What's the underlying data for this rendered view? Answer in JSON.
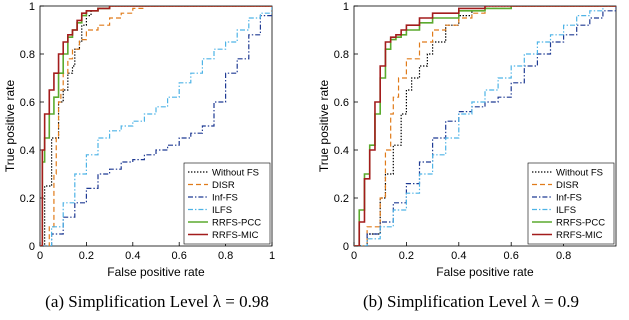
{
  "figure": {
    "captions": [
      "(a)  Simplification Level λ = 0.98",
      "(b)  Simplification Level λ = 0.9"
    ]
  },
  "chart_data": [
    {
      "type": "line",
      "xlabel": "False positive rate",
      "ylabel": "True positive rate",
      "xlim": [
        0,
        1
      ],
      "ylim": [
        0,
        1
      ],
      "xticks": [
        "0",
        "0.2",
        "0.4",
        "0.6",
        "0.8",
        "1"
      ],
      "yticks": [
        "0",
        "0.2",
        "0.4",
        "0.6",
        "0.8",
        "1"
      ],
      "grid": false,
      "legend_position": "bottom-right",
      "series": [
        {
          "name": "Without FS",
          "color": "#000000",
          "dash": "dotted",
          "x": [
            0,
            0.02,
            0.05,
            0.08,
            0.1,
            0.12,
            0.14,
            0.15,
            0.17,
            0.18,
            0.2,
            0.22,
            0.25,
            0.3,
            0.35,
            0.4,
            0.5,
            0.6,
            0.7,
            0.8,
            0.9,
            1.0
          ],
          "y": [
            0,
            0.25,
            0.45,
            0.6,
            0.65,
            0.72,
            0.75,
            0.82,
            0.85,
            0.92,
            0.96,
            0.98,
            0.99,
            1,
            1,
            1,
            1,
            1,
            1,
            1,
            1,
            1
          ]
        },
        {
          "name": "DISR",
          "color": "#E07B1A",
          "dash": "dashed",
          "x": [
            0,
            0.04,
            0.06,
            0.07,
            0.08,
            0.09,
            0.1,
            0.12,
            0.14,
            0.17,
            0.2,
            0.25,
            0.3,
            0.35,
            0.4,
            0.45,
            0.5,
            0.6,
            0.7,
            1.0
          ],
          "y": [
            0,
            0.08,
            0.3,
            0.45,
            0.6,
            0.65,
            0.72,
            0.78,
            0.82,
            0.86,
            0.9,
            0.92,
            0.95,
            0.97,
            0.99,
            1,
            1,
            1,
            1,
            1
          ]
        },
        {
          "name": "Inf-FS",
          "color": "#1F3A93",
          "dash": "dashdot",
          "x": [
            0,
            0.05,
            0.1,
            0.15,
            0.2,
            0.25,
            0.3,
            0.35,
            0.4,
            0.45,
            0.5,
            0.55,
            0.6,
            0.65,
            0.7,
            0.75,
            0.8,
            0.85,
            0.9,
            0.95,
            1.0
          ],
          "y": [
            0,
            0.05,
            0.12,
            0.18,
            0.24,
            0.3,
            0.32,
            0.35,
            0.36,
            0.38,
            0.4,
            0.42,
            0.45,
            0.47,
            0.5,
            0.6,
            0.72,
            0.78,
            0.88,
            0.96,
            1.0
          ]
        },
        {
          "name": "ILFS",
          "color": "#4EB3E6",
          "dash": "dashdot",
          "x": [
            0,
            0.05,
            0.1,
            0.15,
            0.2,
            0.25,
            0.3,
            0.35,
            0.4,
            0.45,
            0.5,
            0.55,
            0.6,
            0.65,
            0.7,
            0.75,
            0.8,
            0.85,
            0.9,
            0.95,
            1.0
          ],
          "y": [
            0,
            0.08,
            0.18,
            0.3,
            0.38,
            0.45,
            0.48,
            0.5,
            0.52,
            0.55,
            0.58,
            0.62,
            0.68,
            0.72,
            0.78,
            0.82,
            0.85,
            0.9,
            0.95,
            0.97,
            1.0
          ]
        },
        {
          "name": "RRFS-PCC",
          "color": "#5BAA2E",
          "dash": "solid",
          "x": [
            0,
            0.01,
            0.02,
            0.04,
            0.06,
            0.08,
            0.1,
            0.12,
            0.14,
            0.16,
            0.18,
            0.2,
            0.25,
            0.3,
            0.4,
            0.5,
            0.7,
            1.0
          ],
          "y": [
            0,
            0.35,
            0.45,
            0.55,
            0.62,
            0.72,
            0.8,
            0.87,
            0.9,
            0.93,
            0.96,
            0.98,
            0.99,
            1,
            1,
            1,
            1,
            1
          ]
        },
        {
          "name": "RRFS-MIC",
          "color": "#A31C1C",
          "dash": "solid",
          "x": [
            0,
            0.01,
            0.02,
            0.04,
            0.06,
            0.08,
            0.1,
            0.12,
            0.14,
            0.16,
            0.18,
            0.2,
            0.25,
            0.3,
            0.4,
            0.5,
            0.7,
            1.0
          ],
          "y": [
            0,
            0.4,
            0.55,
            0.65,
            0.72,
            0.8,
            0.85,
            0.88,
            0.9,
            0.94,
            0.97,
            0.98,
            0.99,
            1,
            1,
            1,
            1,
            1
          ]
        }
      ]
    },
    {
      "type": "line",
      "xlabel": "False positive rate",
      "ylabel": "True positive rate",
      "xlim": [
        0,
        1
      ],
      "ylim": [
        0,
        1
      ],
      "xticks": [
        "0",
        "0.2",
        "0.4",
        "0.6",
        "0.8"
      ],
      "yticks": [
        "0",
        "0.2",
        "0.4",
        "0.6",
        "0.8",
        "1"
      ],
      "grid": false,
      "legend_position": "bottom-right",
      "series": [
        {
          "name": "Without FS",
          "color": "#000000",
          "dash": "dotted",
          "x": [
            0,
            0.05,
            0.1,
            0.12,
            0.15,
            0.18,
            0.2,
            0.22,
            0.25,
            0.28,
            0.3,
            0.35,
            0.4,
            0.45,
            0.5,
            0.6,
            0.7,
            0.8,
            0.9,
            1.0
          ],
          "y": [
            0,
            0.05,
            0.2,
            0.3,
            0.42,
            0.55,
            0.65,
            0.7,
            0.75,
            0.8,
            0.85,
            0.92,
            0.96,
            0.98,
            1,
            1,
            1,
            1,
            1,
            1
          ]
        },
        {
          "name": "DISR",
          "color": "#E07B1A",
          "dash": "dashed",
          "x": [
            0,
            0.05,
            0.1,
            0.12,
            0.14,
            0.15,
            0.17,
            0.2,
            0.25,
            0.3,
            0.35,
            0.4,
            0.45,
            0.5,
            0.6,
            0.7,
            0.8,
            1.0
          ],
          "y": [
            0,
            0.08,
            0.2,
            0.4,
            0.55,
            0.62,
            0.7,
            0.78,
            0.85,
            0.9,
            0.92,
            0.95,
            0.97,
            0.99,
            1,
            1,
            1,
            1
          ]
        },
        {
          "name": "Inf-FS",
          "color": "#1F3A93",
          "dash": "dashdot",
          "x": [
            0,
            0.05,
            0.1,
            0.15,
            0.2,
            0.25,
            0.3,
            0.35,
            0.4,
            0.45,
            0.5,
            0.55,
            0.6,
            0.65,
            0.7,
            0.75,
            0.8,
            0.85,
            0.9,
            0.95,
            1.0
          ],
          "y": [
            0,
            0.05,
            0.1,
            0.18,
            0.26,
            0.35,
            0.45,
            0.52,
            0.56,
            0.58,
            0.6,
            0.62,
            0.68,
            0.75,
            0.8,
            0.85,
            0.88,
            0.92,
            0.95,
            0.98,
            1.0
          ]
        },
        {
          "name": "ILFS",
          "color": "#4EB3E6",
          "dash": "dashdot",
          "x": [
            0,
            0.05,
            0.1,
            0.15,
            0.2,
            0.25,
            0.3,
            0.35,
            0.4,
            0.45,
            0.5,
            0.55,
            0.6,
            0.65,
            0.7,
            0.75,
            0.8,
            0.85,
            0.9,
            0.95,
            1.0
          ],
          "y": [
            0,
            0.03,
            0.08,
            0.15,
            0.22,
            0.3,
            0.38,
            0.45,
            0.55,
            0.6,
            0.65,
            0.7,
            0.75,
            0.8,
            0.85,
            0.88,
            0.92,
            0.96,
            0.98,
            1,
            1.0
          ]
        },
        {
          "name": "RRFS-PCC",
          "color": "#5BAA2E",
          "dash": "solid",
          "x": [
            0,
            0.02,
            0.04,
            0.06,
            0.08,
            0.1,
            0.12,
            0.14,
            0.16,
            0.18,
            0.2,
            0.25,
            0.3,
            0.4,
            0.5,
            0.6,
            0.8,
            1.0
          ],
          "y": [
            0,
            0.15,
            0.3,
            0.42,
            0.55,
            0.7,
            0.82,
            0.86,
            0.87,
            0.88,
            0.9,
            0.93,
            0.95,
            0.98,
            0.99,
            1,
            1,
            1
          ]
        },
        {
          "name": "RRFS-MIC",
          "color": "#A31C1C",
          "dash": "solid",
          "x": [
            0,
            0.02,
            0.04,
            0.06,
            0.08,
            0.1,
            0.12,
            0.14,
            0.16,
            0.18,
            0.2,
            0.25,
            0.3,
            0.4,
            0.5,
            0.6,
            0.8,
            1.0
          ],
          "y": [
            0,
            0.1,
            0.28,
            0.4,
            0.6,
            0.75,
            0.85,
            0.87,
            0.88,
            0.9,
            0.92,
            0.95,
            0.97,
            0.99,
            1,
            1,
            1,
            1
          ]
        }
      ]
    }
  ]
}
